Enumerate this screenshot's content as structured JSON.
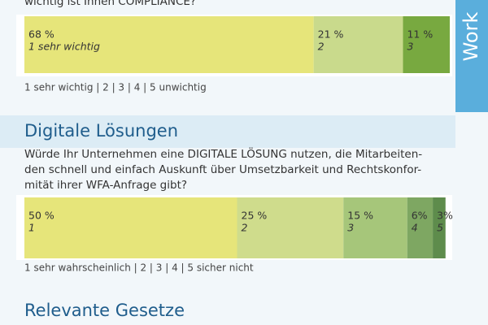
{
  "side_label": "Work",
  "chart_data": [
    {
      "type": "stacked_bar",
      "title_lines": [
        "wichtig ist Ihnen COMPLIANCE?"
      ],
      "scale_note": "1 sehr wichtig  |  2  |  3  |  4  |  5  unwichtig",
      "xlim": [
        0,
        100
      ],
      "series": [
        {
          "name": "1 sehr wichtig",
          "color": "#e6e57a",
          "values": [
            68
          ],
          "value_labels": [
            "68 %"
          ]
        },
        {
          "name": "2",
          "color": "#c9da8c",
          "values": [
            21
          ],
          "value_labels": [
            "21 %"
          ]
        },
        {
          "name": "3",
          "color": "#78a940",
          "values": [
            11
          ],
          "value_labels": [
            "11 %"
          ]
        }
      ]
    },
    {
      "type": "stacked_bar",
      "heading": "Digitale Lösungen",
      "title_lines": [
        "Würde Ihr Unternehmen eine DIGITALE LÖSUNG nutzen, die Mitarbeiten-",
        "den schnell und einfach Auskunft über Umsetzbarkeit und Rechtskonfor-",
        "mität ihrer WFA-Anfrage gibt?"
      ],
      "scale_note": "1  sehr wahrscheinlich  |  2  |  3  |  4  |  5  sicher nicht",
      "xlim": [
        0,
        100
      ],
      "series": [
        {
          "name": "1",
          "color": "#e6e57a",
          "values": [
            50
          ],
          "value_labels": [
            "50 %"
          ]
        },
        {
          "name": "2",
          "color": "#cfdc8c",
          "values": [
            25
          ],
          "value_labels": [
            "25 %"
          ]
        },
        {
          "name": "3",
          "color": "#a6c67a",
          "values": [
            15
          ],
          "value_labels": [
            "15 %"
          ]
        },
        {
          "name": "4",
          "color": "#7ea762",
          "values": [
            6
          ],
          "value_labels": [
            "6%"
          ]
        },
        {
          "name": "5",
          "color": "#5e8c4c",
          "values": [
            3
          ],
          "value_labels": [
            "3%"
          ]
        }
      ]
    }
  ],
  "next_heading": "Relevante Gesetze"
}
